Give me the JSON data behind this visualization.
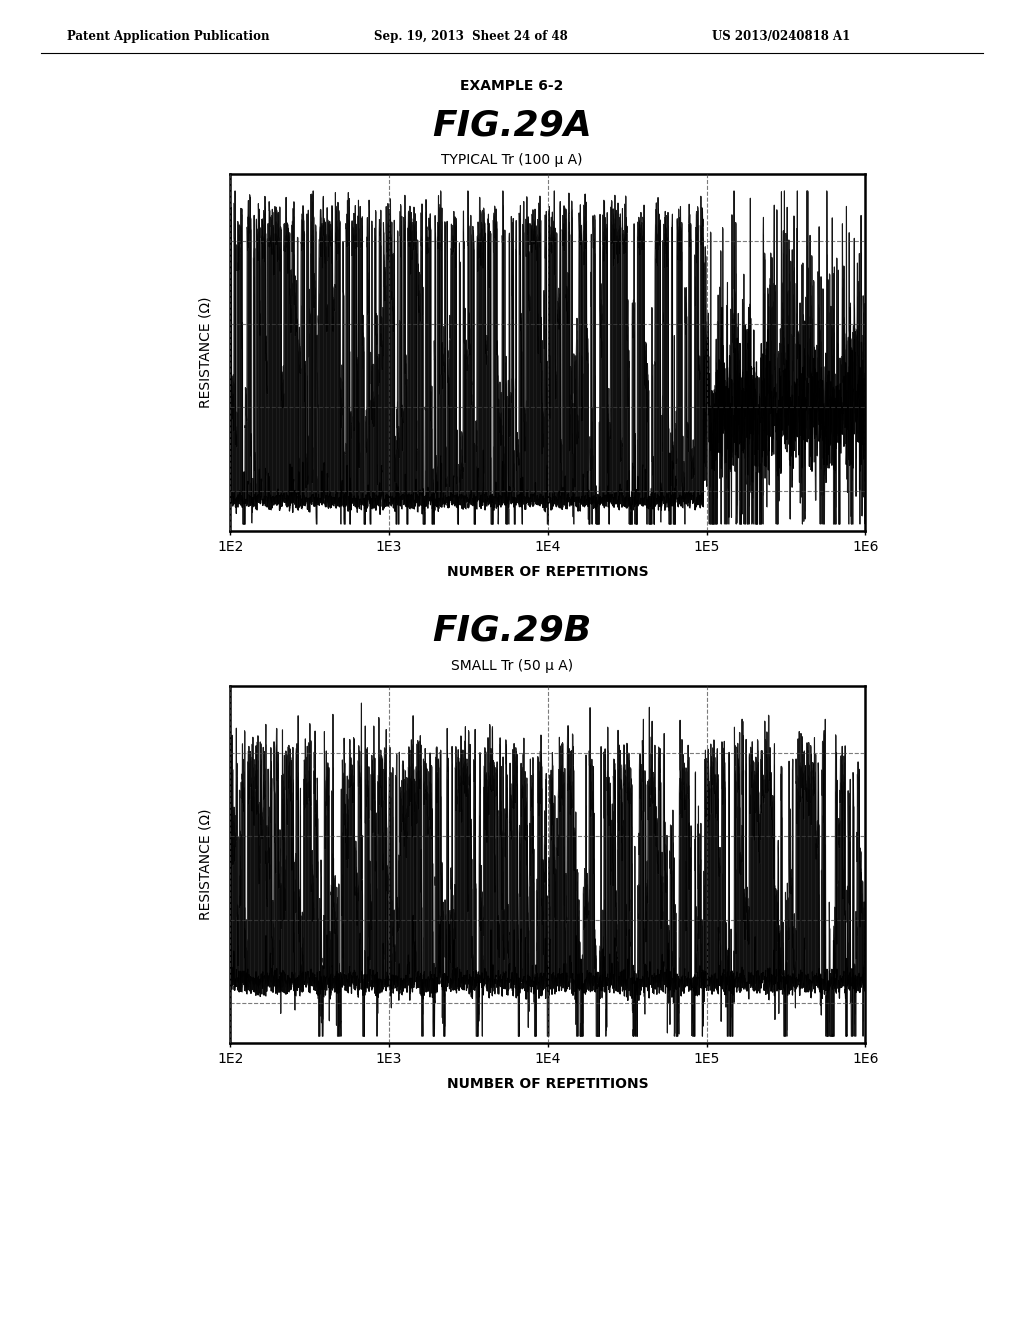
{
  "header_left": "Patent Application Publication",
  "header_center": "Sep. 19, 2013  Sheet 24 of 48",
  "header_right": "US 2013/0240818 A1",
  "example_label": "EXAMPLE 6-2",
  "fig_a_title": "FIG.29A",
  "fig_a_subtitle": "TYPICAL Tr (100 μ A)",
  "fig_b_title": "FIG.29B",
  "fig_b_subtitle": "SMALL Tr (50 μ A)",
  "xlabel": "NUMBER OF REPETITIONS",
  "ylabel": "RESISTANCE (Ω)",
  "xtick_labels": [
    "1E2",
    "1E3",
    "1E4",
    "1E5",
    "1E6"
  ],
  "background_color": "#ffffff",
  "line_color": "#000000",
  "grid_color": "#444444"
}
